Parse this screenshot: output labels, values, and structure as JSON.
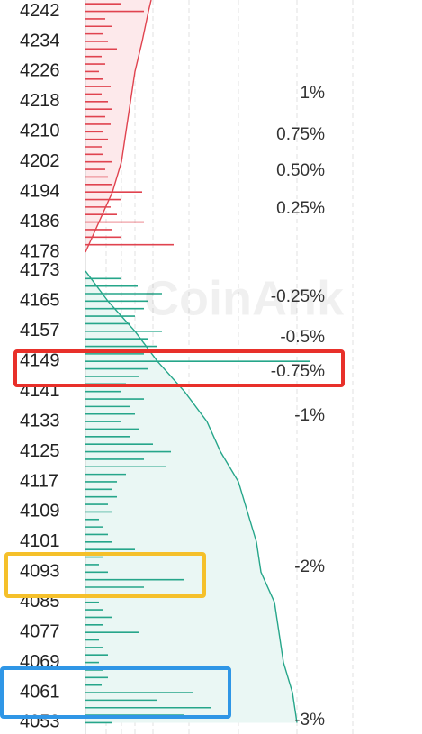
{
  "chart_data": {
    "type": "depth",
    "watermark": "CoinAnk",
    "ylim": [
      4050,
      4245
    ],
    "yticks": [
      4242,
      4234,
      4226,
      4218,
      4210,
      4202,
      4194,
      4186,
      4178,
      4173,
      4165,
      4157,
      4149,
      4141,
      4133,
      4125,
      4117,
      4109,
      4101,
      4093,
      4085,
      4077,
      4069,
      4061,
      4053
    ],
    "percent_labels": [
      "1%",
      "0.75%",
      "0.50%",
      "0.25%",
      "-0.25%",
      "-0.5%",
      "-0.75%",
      "-1%",
      "-2%",
      "-3%"
    ],
    "asks": {
      "color": "#e0434f",
      "fill": "#fde9eb",
      "prices": [
        4180,
        4182,
        4184,
        4186,
        4188,
        4190,
        4192,
        4194,
        4196,
        4198,
        4200,
        4202,
        4204,
        4206,
        4208,
        4210,
        4212,
        4214,
        4216,
        4218,
        4220,
        4222,
        4224,
        4226,
        4228,
        4230,
        4232,
        4234,
        4236,
        4238,
        4240,
        4242,
        4244
      ],
      "values": [
        98,
        40,
        30,
        65,
        35,
        28,
        40,
        63,
        30,
        25,
        22,
        30,
        20,
        18,
        25,
        20,
        28,
        22,
        30,
        25,
        18,
        28,
        20,
        15,
        22,
        18,
        35,
        25,
        20,
        30,
        22,
        65,
        40
      ],
      "depth_prices": [
        4178,
        4186,
        4194,
        4202,
        4210,
        4218,
        4226,
        4234,
        4242,
        4245
      ],
      "depth_values": [
        0,
        15,
        30,
        40,
        45,
        50,
        55,
        63,
        70,
        73
      ]
    },
    "bids": {
      "color": "#26a68a",
      "fill": "#eaf7f4",
      "prices": [
        4171,
        4169,
        4167,
        4165,
        4163,
        4161,
        4159,
        4157,
        4155,
        4153,
        4151,
        4149,
        4147,
        4145,
        4143,
        4141,
        4139,
        4137,
        4135,
        4133,
        4131,
        4129,
        4127,
        4125,
        4123,
        4121,
        4119,
        4117,
        4115,
        4113,
        4111,
        4109,
        4107,
        4105,
        4103,
        4101,
        4099,
        4097,
        4095,
        4093,
        4091,
        4089,
        4087,
        4085,
        4083,
        4081,
        4079,
        4077,
        4075,
        4073,
        4071,
        4069,
        4067,
        4065,
        4063,
        4061,
        4059,
        4057,
        4055,
        4053
      ],
      "values": [
        40,
        58,
        85,
        70,
        65,
        55,
        50,
        85,
        70,
        80,
        65,
        250,
        70,
        60,
        45,
        40,
        65,
        50,
        55,
        40,
        60,
        50,
        75,
        95,
        65,
        90,
        45,
        35,
        30,
        35,
        25,
        30,
        15,
        20,
        25,
        30,
        55,
        20,
        15,
        25,
        110,
        65,
        25,
        15,
        20,
        30,
        20,
        60,
        15,
        20,
        25,
        15,
        20,
        25,
        18,
        120,
        80,
        140,
        110,
        30
      ],
      "depth_prices": [
        4173,
        4165,
        4157,
        4149,
        4141,
        4133,
        4125,
        4117,
        4109,
        4101,
        4093,
        4085,
        4077,
        4069,
        4061,
        4053
      ],
      "depth_values": [
        0,
        25,
        55,
        80,
        110,
        135,
        150,
        170,
        180,
        190,
        195,
        210,
        215,
        220,
        230,
        235
      ]
    }
  }
}
